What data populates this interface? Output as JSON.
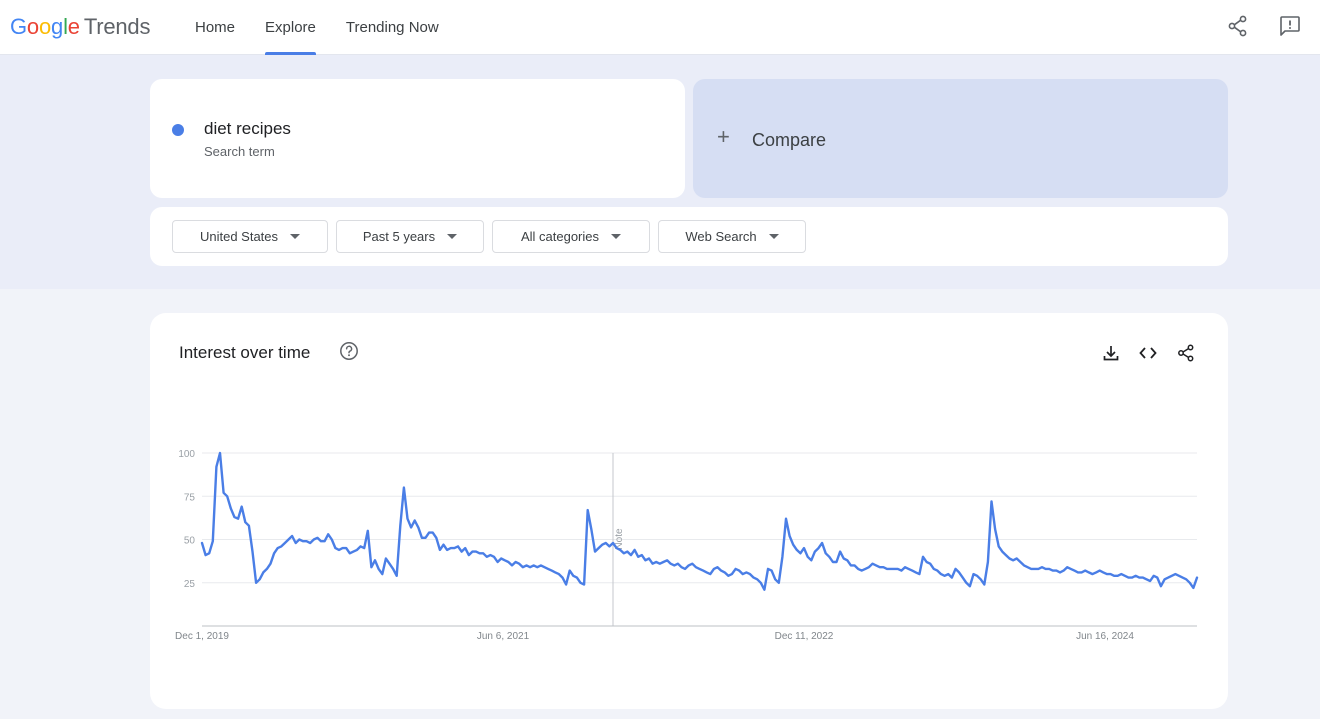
{
  "header": {
    "logo": {
      "letters": [
        "G",
        "o",
        "o",
        "g",
        "l",
        "e"
      ],
      "product": "Trends"
    },
    "nav": [
      {
        "label": "Home",
        "active": false
      },
      {
        "label": "Explore",
        "active": true
      },
      {
        "label": "Trending Now",
        "active": false
      }
    ],
    "icons": [
      "share-icon",
      "feedback-icon"
    ]
  },
  "search": {
    "term": "diet recipes",
    "term_type": "Search term",
    "term_color": "#4a7ee6",
    "compare_label": "Compare"
  },
  "filters": [
    {
      "label": "United States"
    },
    {
      "label": "Past 5 years"
    },
    {
      "label": "All categories"
    },
    {
      "label": "Web Search"
    }
  ],
  "interest_panel": {
    "title": "Interest over time",
    "actions": [
      "download-icon",
      "embed-icon",
      "share-icon"
    ]
  },
  "chart_data": {
    "type": "line",
    "series": [
      {
        "name": "diet recipes",
        "color": "#4a7ee6",
        "values": [
          48,
          41,
          42,
          49,
          92,
          100,
          77,
          75,
          68,
          63,
          62,
          69,
          60,
          58,
          43,
          25,
          27,
          31,
          33,
          36,
          42,
          45,
          46,
          48,
          50,
          52,
          48,
          50,
          49,
          49,
          48,
          50,
          51,
          49,
          49,
          53,
          50,
          45,
          44,
          45,
          45,
          42,
          43,
          44,
          46,
          45,
          55,
          34,
          38,
          33,
          30,
          39,
          36,
          33,
          29,
          58,
          80,
          62,
          57,
          61,
          57,
          51,
          51,
          54,
          54,
          51,
          44,
          47,
          44,
          45,
          45,
          46,
          43,
          45,
          41,
          43,
          43,
          42,
          42,
          40,
          41,
          40,
          37,
          39,
          38,
          37,
          35,
          37,
          36,
          34,
          35,
          34,
          35,
          34,
          35,
          34,
          33,
          32,
          31,
          30,
          28,
          24,
          32,
          29,
          28,
          25,
          24,
          67,
          56,
          43,
          45,
          47,
          48,
          46,
          48,
          45,
          44,
          42,
          43,
          41,
          44,
          40,
          41,
          38,
          39,
          36,
          37,
          36,
          37,
          38,
          36,
          35,
          36,
          34,
          33,
          35,
          36,
          34,
          33,
          32,
          31,
          30,
          33,
          34,
          32,
          31,
          29,
          30,
          33,
          32,
          30,
          31,
          30,
          28,
          27,
          25,
          21,
          33,
          32,
          27,
          25,
          40,
          62,
          52,
          47,
          44,
          42,
          45,
          40,
          38,
          43,
          45,
          48,
          42,
          40,
          37,
          37,
          43,
          39,
          38,
          35,
          35,
          33,
          32,
          33,
          34,
          36,
          35,
          34,
          34,
          33,
          33,
          33,
          33,
          32,
          34,
          33,
          32,
          31,
          30,
          40,
          37,
          36,
          33,
          32,
          30,
          29,
          30,
          28,
          33,
          31,
          28,
          25,
          23,
          30,
          29,
          27,
          24,
          37,
          72,
          56,
          46,
          43,
          41,
          39,
          38,
          39,
          37,
          35,
          34,
          33,
          33,
          33,
          34,
          33,
          33,
          32,
          32,
          31,
          32,
          34,
          33,
          32,
          31,
          31,
          32,
          31,
          30,
          31,
          32,
          31,
          30,
          30,
          29,
          29,
          30,
          29,
          28,
          28,
          29,
          28,
          28,
          27,
          26,
          29,
          28,
          23,
          27,
          28,
          29,
          30,
          29,
          28,
          27,
          25,
          22,
          28
        ]
      }
    ],
    "x_labels": [
      "Dec 1, 2019",
      "Jun 6, 2021",
      "Dec 11, 2022",
      "Jun 16, 2024"
    ],
    "y_ticks": [
      25,
      50,
      75,
      100
    ],
    "ylim": [
      0,
      100
    ],
    "grid": true,
    "note_marker_label": "Note"
  }
}
